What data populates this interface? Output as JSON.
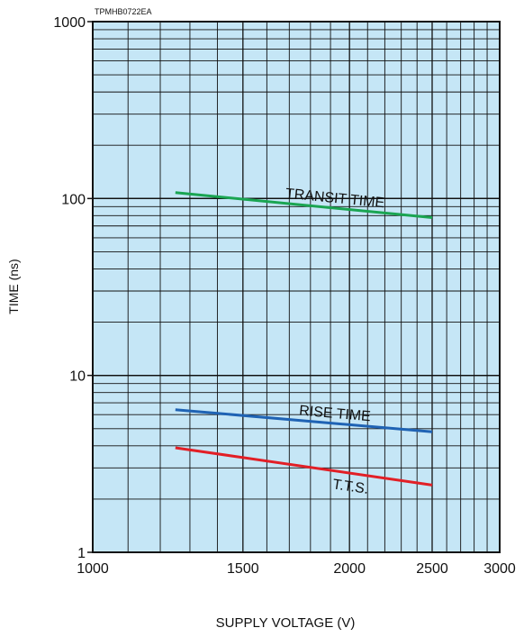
{
  "chart_data": {
    "type": "line",
    "code_label": "TPMHB0722EA",
    "xlabel": "SUPPLY VOLTAGE (V)",
    "ylabel": "TIME (ns)",
    "xscale": "log",
    "yscale": "log",
    "xlim": [
      1000,
      3000
    ],
    "ylim": [
      1,
      1000
    ],
    "xticks": [
      1000,
      1500,
      2000,
      2500,
      3000
    ],
    "yticks": [
      1,
      10,
      100,
      1000
    ],
    "grid": true,
    "background_color": "#c5e6f6",
    "series": [
      {
        "name": "TRANSIT TIME",
        "color": "#1aa552",
        "x": [
          1250,
          2500
        ],
        "y": [
          108,
          78
        ]
      },
      {
        "name": "RISE TIME",
        "color": "#1f63b4",
        "x": [
          1250,
          2500
        ],
        "y": [
          6.4,
          4.8
        ]
      },
      {
        "name": "T.T.S.",
        "color": "#e21f26",
        "x": [
          1250,
          2500
        ],
        "y": [
          3.9,
          2.4
        ]
      }
    ]
  }
}
